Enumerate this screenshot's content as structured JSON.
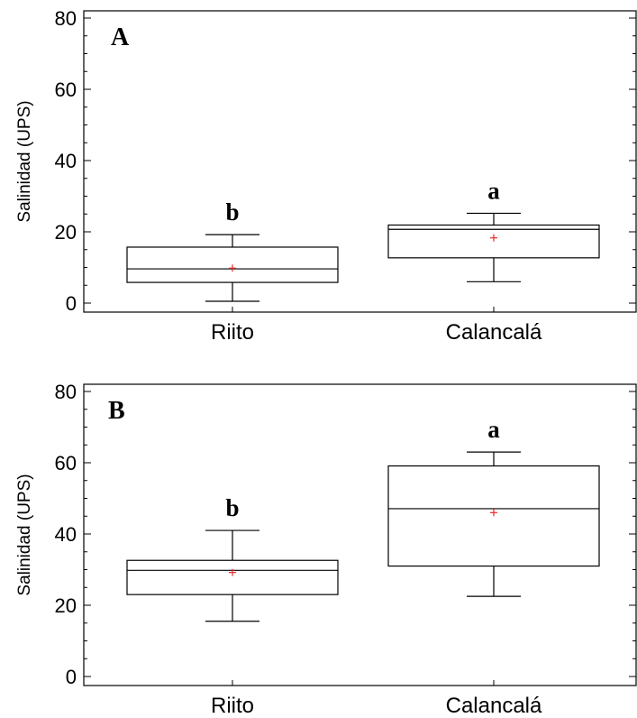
{
  "chart_data": [
    {
      "type": "box",
      "panel_label": "A",
      "ylabel": "Salinidad (UPS)",
      "ylim": [
        0,
        80
      ],
      "yticks": [
        "0",
        "20",
        "40",
        "60",
        "80"
      ],
      "categories": [
        "Riito",
        "Calancalá"
      ],
      "boxes": [
        {
          "category": "Riito",
          "min": 0.5,
          "q1": 5.8,
          "median": 9.6,
          "q3": 15.7,
          "max": 19.2,
          "mean": 9.8,
          "group": "b"
        },
        {
          "category": "Calancalá",
          "min": 6.0,
          "q1": 12.7,
          "median": 20.7,
          "q3": 21.9,
          "max": 25.2,
          "mean": 18.3,
          "group": "a"
        }
      ],
      "mean_marker_color": "#e8282b"
    },
    {
      "type": "box",
      "panel_label": "B",
      "ylabel": "Salinidad (UPS)",
      "ylim": [
        0,
        80
      ],
      "yticks": [
        "0",
        "20",
        "40",
        "60",
        "80"
      ],
      "categories": [
        "Riito",
        "Calancalá"
      ],
      "boxes": [
        {
          "category": "Riito",
          "min": 15.5,
          "q1": 23.0,
          "median": 29.8,
          "q3": 32.6,
          "max": 41.0,
          "mean": 29.2,
          "group": "b"
        },
        {
          "category": "Calancalá",
          "min": 22.5,
          "q1": 31.0,
          "median": 47.1,
          "q3": 59.1,
          "max": 63.0,
          "mean": 46.0,
          "group": "a"
        }
      ],
      "mean_marker_color": "#e8282b"
    }
  ]
}
